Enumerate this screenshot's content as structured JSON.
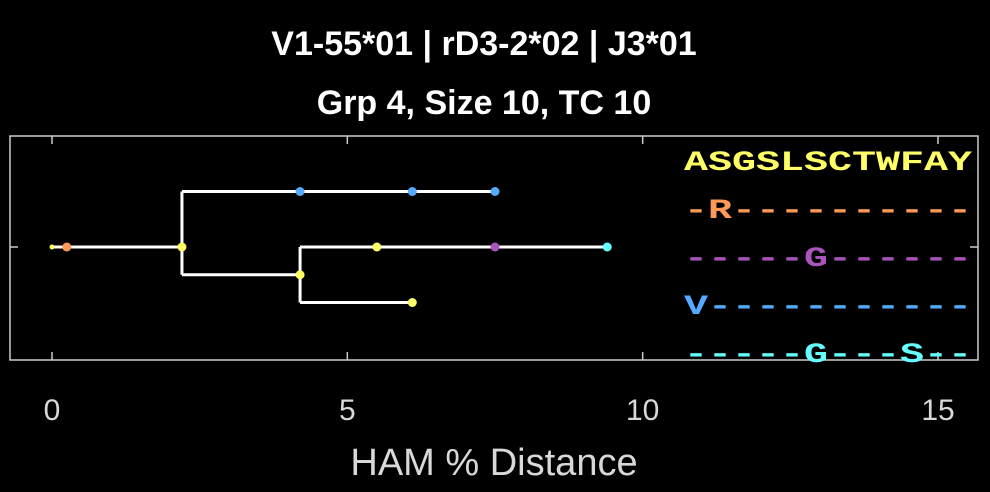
{
  "title_line1": "V1-55*01 | rD3-2*02 | J3*01",
  "title_line2": "Grp 4, Size 10, TC 10",
  "chart_data": {
    "type": "tree",
    "xlabel": "HAM % Distance",
    "xlim": [
      -0.3,
      15.6
    ],
    "xticks": [
      0,
      5,
      10,
      15
    ],
    "xtick_labels": [
      "0",
      "5",
      "10",
      "15"
    ],
    "grid": false,
    "colors": {
      "background": "#000000",
      "axes": "#cccccc",
      "branches": "#ffffff",
      "yellow": "#ffff66",
      "orange": "#ff9955",
      "purple": "#aa55bb",
      "blue": "#55aaff",
      "cyan": "#66ffff"
    },
    "branches": [
      {
        "x1": 0.0,
        "x2": 2.2,
        "lane": 2
      },
      {
        "x1": 2.2,
        "x2": 2.2,
        "lane_from": 1,
        "lane_to": 2.5
      },
      {
        "x1": 2.2,
        "x2": 7.5,
        "lane": 1
      },
      {
        "x1": 2.2,
        "x2": 4.2,
        "lane": 2.5
      },
      {
        "x1": 4.2,
        "x2": 4.2,
        "lane_from": 2,
        "lane_to": 3
      },
      {
        "x1": 4.2,
        "x2": 9.4,
        "lane": 2
      },
      {
        "x1": 4.2,
        "x2": 6.1,
        "lane": 3
      }
    ],
    "nodes": [
      {
        "x": 0.0,
        "lane": 2,
        "color": "yellow"
      },
      {
        "x": 0.25,
        "lane": 2,
        "color": "orange"
      },
      {
        "x": 2.2,
        "lane": 2,
        "color": "yellow"
      },
      {
        "x": 4.2,
        "lane": 1,
        "color": "blue"
      },
      {
        "x": 6.1,
        "lane": 1,
        "color": "blue"
      },
      {
        "x": 7.5,
        "lane": 1,
        "color": "blue"
      },
      {
        "x": 5.5,
        "lane": 2,
        "color": "yellow"
      },
      {
        "x": 7.5,
        "lane": 2,
        "color": "purple"
      },
      {
        "x": 9.4,
        "lane": 2,
        "color": "cyan"
      },
      {
        "x": 4.2,
        "lane": 2.5,
        "color": "yellow"
      },
      {
        "x": 6.1,
        "lane": 3,
        "color": "yellow"
      }
    ],
    "sequences": [
      {
        "seq": "ASGSLSCTWFAY",
        "color": "yellow"
      },
      {
        "seq": "-R----------",
        "color": "orange"
      },
      {
        "seq": "-----G------",
        "color": "purple"
      },
      {
        "seq": "V-----------",
        "color": "blue"
      },
      {
        "seq": "-----G---S--",
        "color": "cyan"
      }
    ]
  }
}
